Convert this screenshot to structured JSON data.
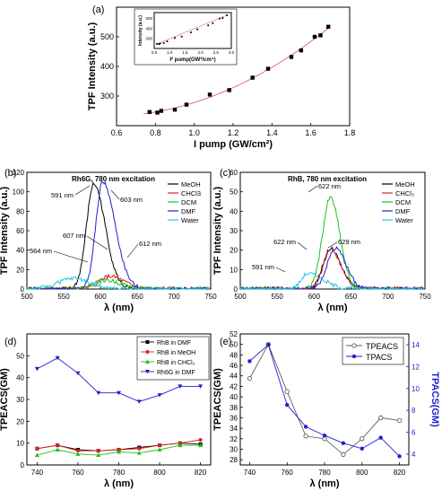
{
  "chart_data": [
    {
      "id": "a",
      "panel_label": "(a)",
      "type": "scatter",
      "xlabel": "I pump (GW/cm²)",
      "ylabel": "TPF Intensity (a.u.)",
      "xlim": [
        0.6,
        1.8
      ],
      "ylim": [
        200,
        600
      ],
      "xticks": [
        "0.6",
        "0.8",
        "1.0",
        "1.2",
        "1.4",
        "1.6",
        "1.8"
      ],
      "yticks": [
        "300",
        "400",
        "500"
      ],
      "series": [
        {
          "color": "#000000",
          "marker": "square",
          "x": [
            0.77,
            0.81,
            0.83,
            0.9,
            0.96,
            1.08,
            1.18,
            1.3,
            1.38,
            1.5,
            1.55,
            1.62,
            1.65,
            1.69
          ],
          "y": [
            246,
            244,
            250,
            254,
            271,
            305,
            320,
            362,
            392,
            432,
            454,
            500,
            505,
            534
          ],
          "fit_color": "#e06060"
        }
      ],
      "inset": {
        "xlabel": "I² pump(GW²/cm⁴)",
        "ylabel": "Intensity (a.u.)",
        "xlim": [
          0.5,
          3.0
        ],
        "ylim": [
          200,
          560
        ],
        "xticks": [
          "0.5",
          "1.0",
          "1.5",
          "2.0",
          "2.5",
          "3.0"
        ],
        "yticks": [
          "300",
          "400",
          "500"
        ],
        "x": [
          0.59,
          0.66,
          0.69,
          0.81,
          0.92,
          1.17,
          1.39,
          1.69,
          1.9,
          2.25,
          2.4,
          2.62,
          2.72,
          2.86
        ],
        "y": [
          246,
          244,
          250,
          254,
          271,
          305,
          320,
          362,
          392,
          432,
          454,
          500,
          505,
          534
        ]
      }
    },
    {
      "id": "b",
      "panel_label": "(b)",
      "type": "line",
      "title": "Rh6G, 780 nm excitation",
      "xlabel": "λ (nm)",
      "ylabel": "TPF Intensity (a.u.)",
      "xlim": [
        500,
        750
      ],
      "ylim": [
        0,
        120
      ],
      "xticks": [
        "500",
        "550",
        "600",
        "650",
        "700",
        "750"
      ],
      "yticks": [
        "0",
        "20",
        "40",
        "60",
        "80",
        "100",
        "120"
      ],
      "series": [
        {
          "name": "MeOH",
          "color": "#000000",
          "peak_x": 591,
          "peak_y": 108,
          "width_l": 14,
          "width_r": 22
        },
        {
          "name": "CHCl3",
          "color": "#e02020",
          "peak_x": 612,
          "peak_y": 13,
          "width_l": 20,
          "width_r": 28
        },
        {
          "name": "DCM",
          "color": "#20c020",
          "peak_x": 607,
          "peak_y": 9,
          "width_l": 22,
          "width_r": 30
        },
        {
          "name": "DMF",
          "color": "#2020d0",
          "peak_x": 603,
          "peak_y": 110,
          "width_l": 13,
          "width_r": 24
        },
        {
          "name": "Water",
          "color": "#20c8e0",
          "peak_x": 564,
          "peak_y": 11,
          "width_l": 30,
          "width_r": 30
        }
      ],
      "annotations": [
        "591 nm",
        "603 nm",
        "607 nm",
        "564 nm",
        "612 nm"
      ]
    },
    {
      "id": "c",
      "panel_label": "(c)",
      "type": "line",
      "title": "RhB, 780 nm excitation",
      "xlabel": "λ (nm)",
      "ylabel": "TPF Intensity (a.u.)",
      "xlim": [
        500,
        750
      ],
      "ylim": [
        0,
        60
      ],
      "xticks": [
        "500",
        "550",
        "600",
        "650",
        "700",
        "750"
      ],
      "yticks": [
        "0",
        "10",
        "20",
        "30",
        "40",
        "50",
        "60"
      ],
      "series": [
        {
          "name": "MeOH",
          "color": "#000000",
          "peak_x": 622,
          "peak_y": 21,
          "width_l": 14,
          "width_r": 20
        },
        {
          "name": "CHCl₃",
          "color": "#e02020",
          "peak_x": 622,
          "peak_y": 20,
          "width_l": 14,
          "width_r": 20
        },
        {
          "name": "DCM",
          "color": "#20c020",
          "peak_x": 622,
          "peak_y": 47,
          "width_l": 15,
          "width_r": 18
        },
        {
          "name": "DMF",
          "color": "#2020d0",
          "peak_x": 629,
          "peak_y": 21,
          "width_l": 16,
          "width_r": 20
        },
        {
          "name": "Water",
          "color": "#20c8e0",
          "peak_x": 591,
          "peak_y": 8,
          "width_l": 12,
          "width_r": 30
        }
      ],
      "annotations": [
        "622 nm",
        "622 nm",
        "629 nm",
        "591 nm"
      ]
    },
    {
      "id": "d",
      "panel_label": "(d)",
      "type": "line",
      "xlabel": "λ (nm)",
      "ylabel": "TPEACS(GM)",
      "xlim": [
        735,
        825
      ],
      "ylim": [
        0,
        60
      ],
      "xticks": [
        "740",
        "760",
        "780",
        "800",
        "820"
      ],
      "yticks": [
        "0",
        "10",
        "20",
        "30",
        "40",
        "50"
      ],
      "x": [
        740,
        750,
        760,
        770,
        780,
        790,
        800,
        810,
        820
      ],
      "series": [
        {
          "name": "RhB in DMF",
          "color": "#000000",
          "marker": "square",
          "values": [
            7.5,
            9,
            7,
            6.5,
            7,
            8,
            9,
            10,
            9.5
          ]
        },
        {
          "name": "RhB in MeOH",
          "color": "#e02020",
          "marker": "circle",
          "values": [
            7.5,
            9,
            6.5,
            6.5,
            7,
            7.5,
            9,
            10,
            11.5
          ]
        },
        {
          "name": "RhB in CHCl₃",
          "color": "#20c020",
          "marker": "triangle-up",
          "values": [
            4.5,
            7,
            5,
            4.5,
            6,
            5.5,
            7,
            9,
            9
          ]
        },
        {
          "name": "Rh6G in DMF",
          "color": "#2020d0",
          "marker": "triangle-down",
          "values": [
            44,
            49,
            42,
            33,
            33,
            29,
            32,
            36,
            36
          ]
        }
      ]
    },
    {
      "id": "e",
      "panel_label": "(e)",
      "type": "line",
      "xlabel": "λ (nm)",
      "ylabel": "TPEACS(GM)",
      "ylabel_right": "TPACS(GM)",
      "xlim": [
        735,
        825
      ],
      "ylim": [
        27,
        52
      ],
      "ylim_right": [
        3,
        15
      ],
      "xticks": [
        "740",
        "760",
        "780",
        "800",
        "820"
      ],
      "yticks": [
        "28",
        "30",
        "32",
        "34",
        "36",
        "38",
        "40",
        "42",
        "44",
        "46",
        "48",
        "50",
        "52"
      ],
      "yticks_right": [
        "4",
        "6",
        "8",
        "10",
        "12",
        "14"
      ],
      "x": [
        740,
        750,
        760,
        770,
        780,
        790,
        800,
        810,
        820
      ],
      "series": [
        {
          "name": "TPEACS",
          "color": "#606060",
          "marker": "open-circle",
          "axis": "left",
          "values": [
            43.5,
            50,
            41,
            32.5,
            32,
            29,
            32,
            36,
            35.5
          ]
        },
        {
          "name": "TPACS",
          "color": "#2020d0",
          "marker": "filled-circle",
          "axis": "right",
          "values": [
            12.5,
            14,
            8.5,
            6.5,
            5.7,
            5,
            4.5,
            5.5,
            3.8
          ]
        }
      ]
    }
  ]
}
